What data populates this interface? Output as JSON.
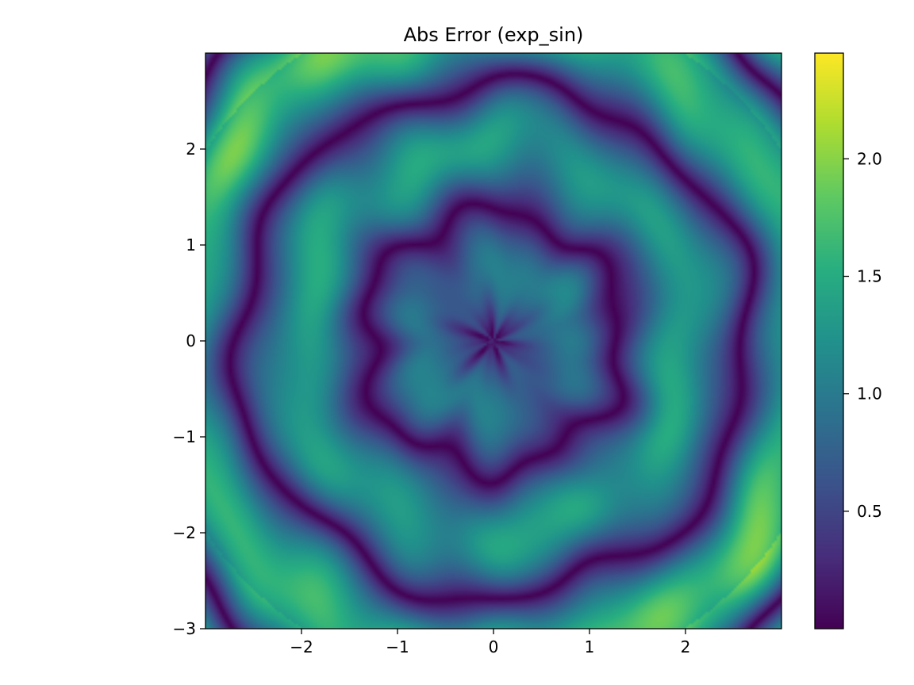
{
  "chart_data": {
    "type": "heatmap",
    "title": "Abs Error (exp_sin)",
    "xlabel": "",
    "ylabel": "",
    "xlim": [
      -3,
      3
    ],
    "ylim": [
      -3,
      3
    ],
    "x_ticks": [
      -2,
      -1,
      0,
      1,
      2
    ],
    "x_tick_labels": [
      "−2",
      "−1",
      "0",
      "1",
      "2"
    ],
    "y_ticks": [
      -3,
      -2,
      -1,
      0,
      1,
      2
    ],
    "y_tick_labels": [
      "−3",
      "−2",
      "−1",
      "0",
      "1",
      "2"
    ],
    "colormap": "viridis",
    "colorbar": {
      "range": [
        0.0,
        2.45
      ],
      "ticks": [
        0.5,
        1.0,
        1.5,
        2.0
      ],
      "tick_labels": [
        "0.5",
        "1.0",
        "1.5",
        "2.0"
      ]
    },
    "grid": false,
    "pattern": "concentric rings of alternating high/low absolute error centered at origin; peak ~2.4 at corners (e.g. top-right and bottom-left), near 0 along ring boundaries"
  }
}
